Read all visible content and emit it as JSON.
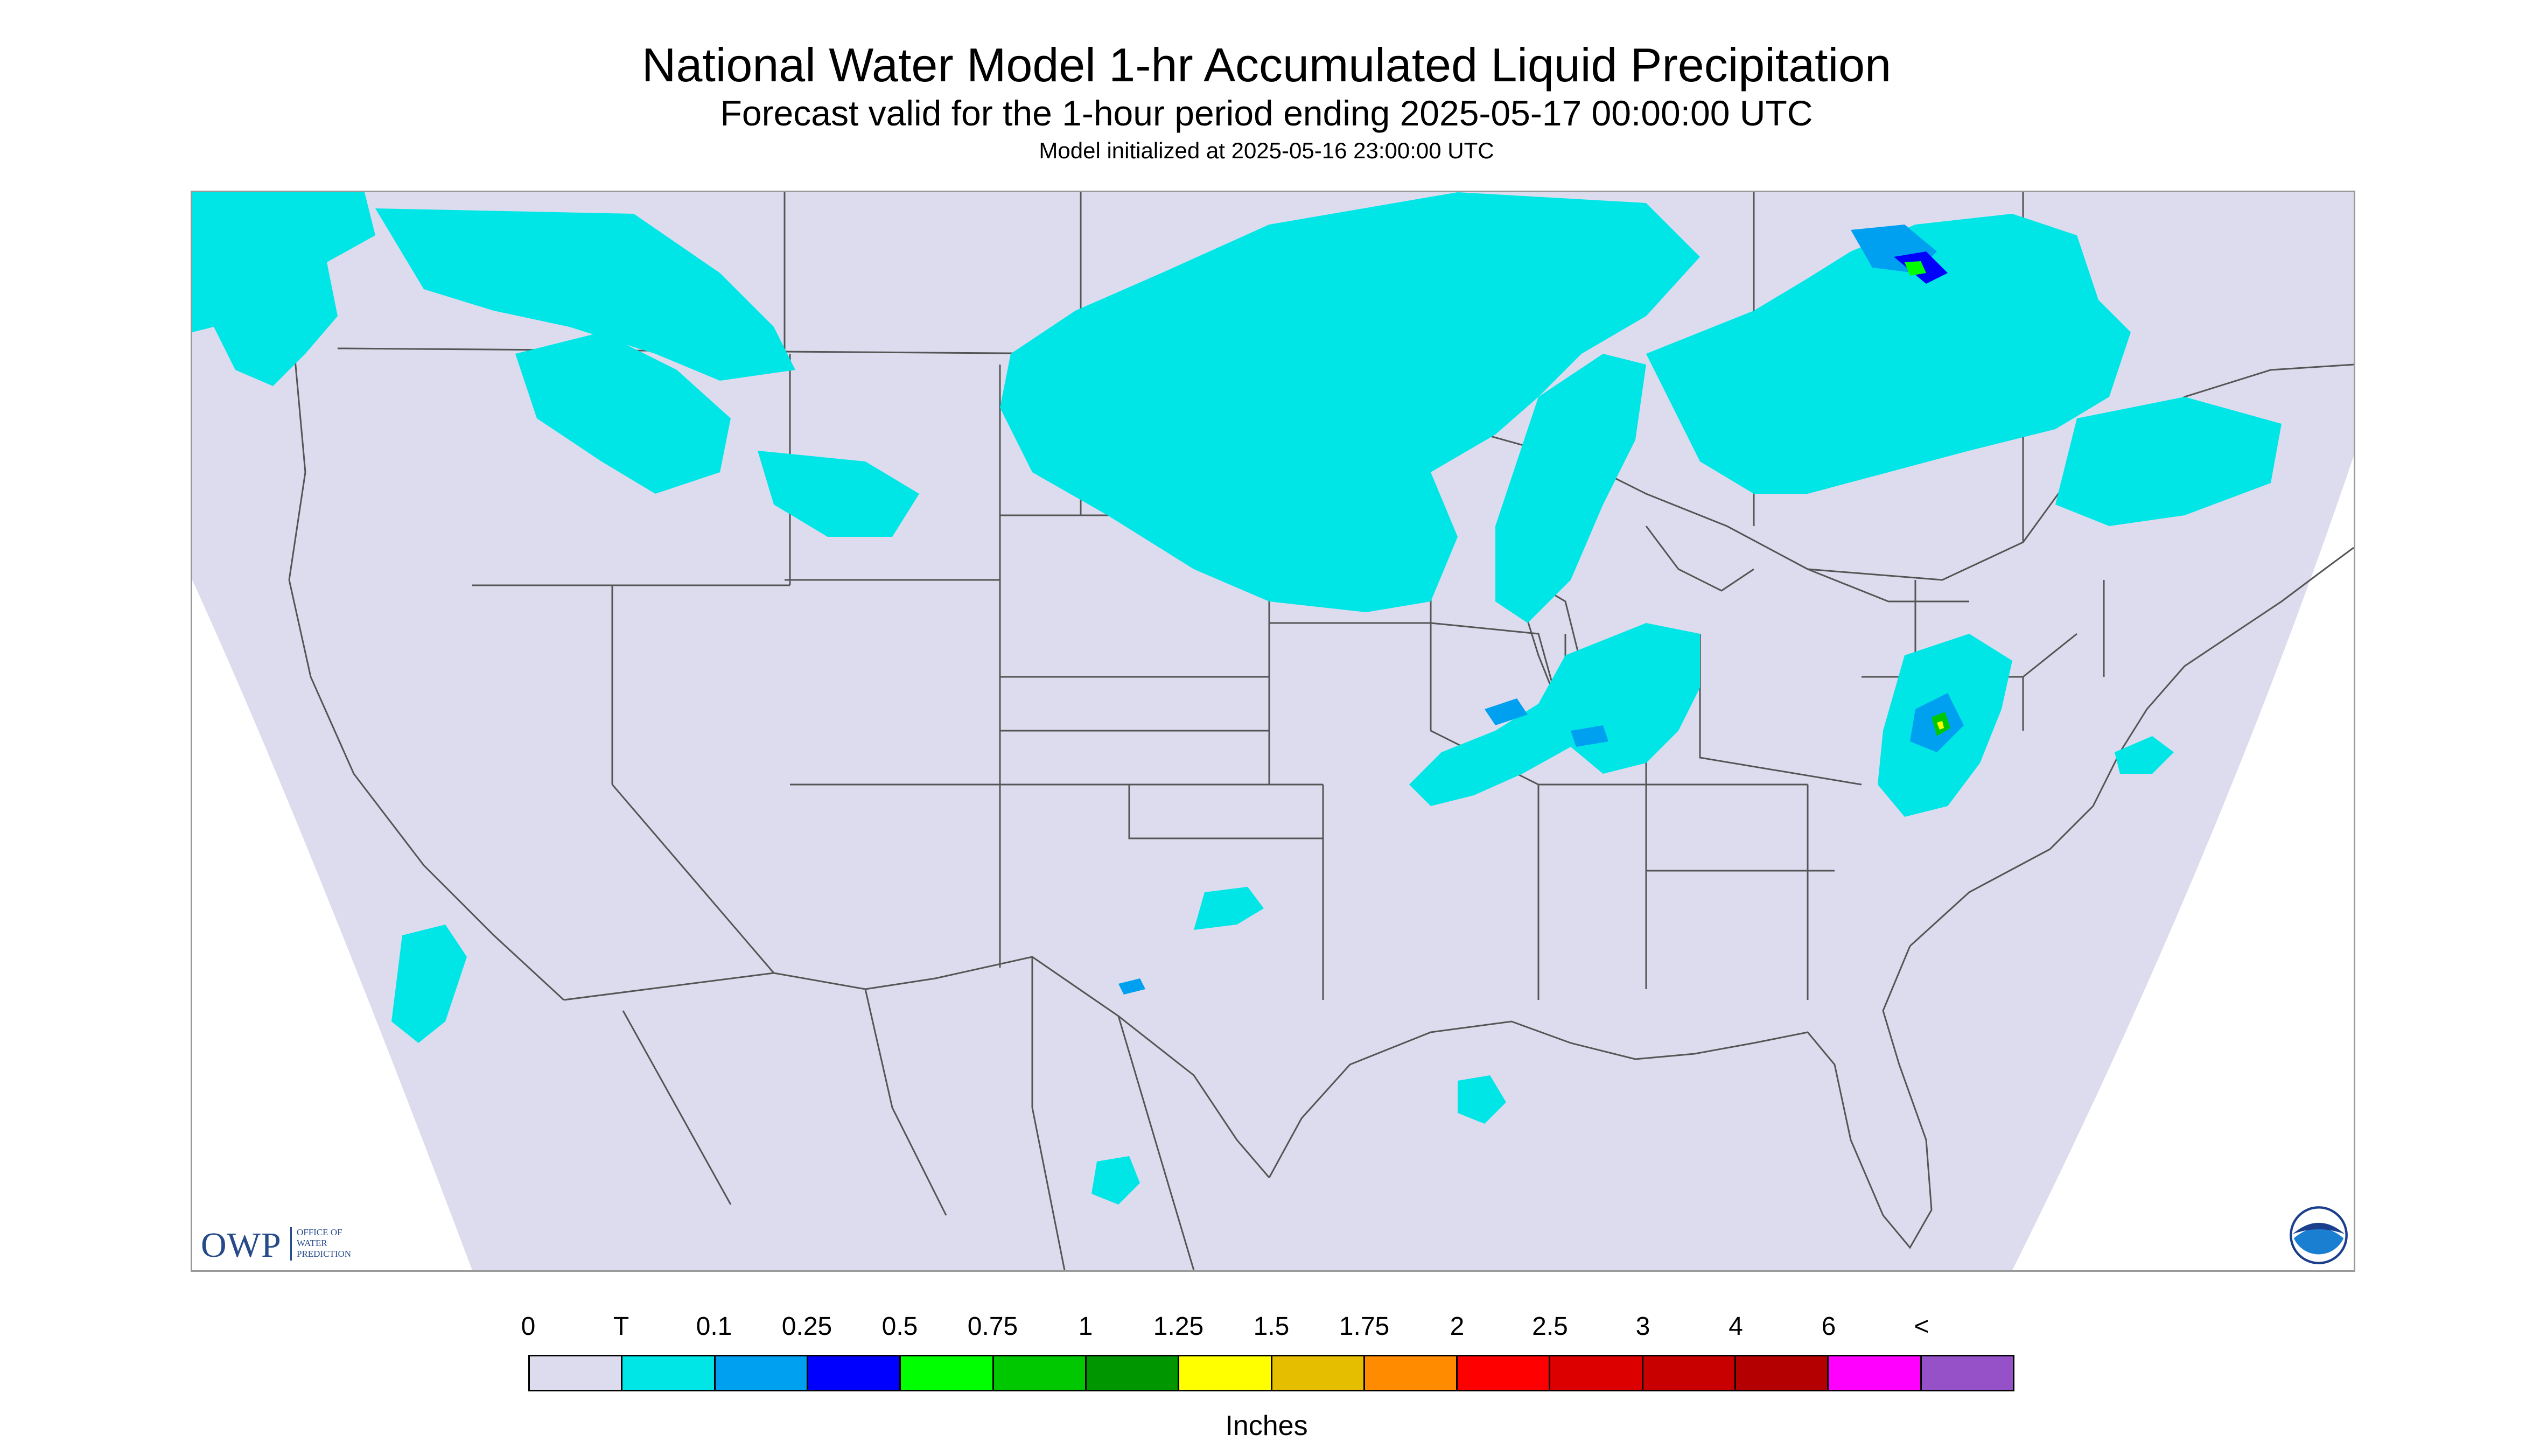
{
  "header": {
    "title": "National Water Model 1-hr Accumulated Liquid Precipitation",
    "subtitle": "Forecast valid for the 1-hour period ending 2025-05-17 00:00:00 UTC",
    "init": "Model initialized at 2025-05-16 23:00:00 UTC"
  },
  "map": {
    "region": "CONUS",
    "background_color": "#dcdcee",
    "outside_color": "#ffffff",
    "border_color": "#555555",
    "precip_color": "#00e6e6"
  },
  "logos": {
    "owp_text": "OWP",
    "owp_sub": [
      "OFFICE OF",
      "WATER",
      "PREDICTION"
    ],
    "noaa_icon": "noaa-logo-icon"
  },
  "legend": {
    "tick_labels": [
      "0",
      "T",
      "0.1",
      "0.25",
      "0.5",
      "0.75",
      "1",
      "1.25",
      "1.5",
      "1.75",
      "2",
      "2.5",
      "3",
      "4",
      "6",
      "<"
    ],
    "colors": [
      "#dcdcee",
      "#00e6e6",
      "#00a0f0",
      "#0000ff",
      "#00ff00",
      "#00c800",
      "#009600",
      "#ffff00",
      "#e6be00",
      "#ff8c00",
      "#ff0000",
      "#dc0000",
      "#c80000",
      "#b40000",
      "#ff00ff",
      "#9650c8"
    ],
    "units": "Inches"
  }
}
